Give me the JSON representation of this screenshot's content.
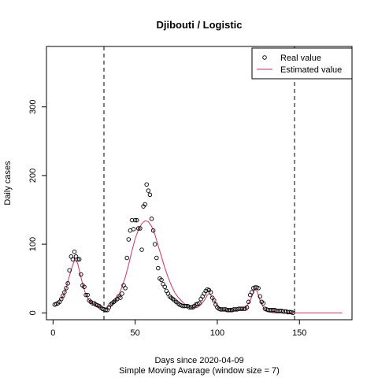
{
  "chart_data": {
    "type": "scatter",
    "title": "Djibouti / Logistic",
    "xlabel": "Days since 2020-04-09",
    "subtitle": "Simple Moving Avarage (window size = 7)",
    "ylabel": "Daily cases",
    "xlim": [
      -4,
      182
    ],
    "ylim": [
      -10,
      388
    ],
    "x_ticks": [
      0,
      50,
      100,
      150
    ],
    "y_ticks": [
      0,
      100,
      200,
      300
    ],
    "vlines": [
      31,
      147
    ],
    "legend": {
      "position": "top-right",
      "entries": [
        {
          "label": "Real value",
          "symbol": "circle"
        },
        {
          "label": "Estimated value",
          "symbol": "line",
          "color": "#cc3366"
        }
      ]
    },
    "series": [
      {
        "name": "Real value",
        "marker": "circle",
        "points": [
          [
            1,
            12
          ],
          [
            2,
            13
          ],
          [
            3,
            14
          ],
          [
            4,
            16
          ],
          [
            5,
            20
          ],
          [
            6,
            25
          ],
          [
            7,
            30
          ],
          [
            8,
            36
          ],
          [
            9,
            43
          ],
          [
            10,
            62
          ],
          [
            11,
            82
          ],
          [
            12,
            78
          ],
          [
            13,
            89
          ],
          [
            14,
            82
          ],
          [
            15,
            78
          ],
          [
            16,
            78
          ],
          [
            17,
            56
          ],
          [
            18,
            40
          ],
          [
            19,
            38
          ],
          [
            20,
            26
          ],
          [
            21,
            26
          ],
          [
            22,
            18
          ],
          [
            23,
            16
          ],
          [
            24,
            14
          ],
          [
            25,
            14
          ],
          [
            26,
            12
          ],
          [
            27,
            11
          ],
          [
            28,
            10
          ],
          [
            29,
            8
          ],
          [
            30,
            6
          ],
          [
            31,
            5
          ],
          [
            32,
            4
          ],
          [
            33,
            4
          ],
          [
            34,
            8
          ],
          [
            35,
            12
          ],
          [
            36,
            14
          ],
          [
            37,
            16
          ],
          [
            38,
            18
          ],
          [
            39,
            20
          ],
          [
            40,
            24
          ],
          [
            41,
            22
          ],
          [
            42,
            28
          ],
          [
            43,
            40
          ],
          [
            44,
            36
          ],
          [
            45,
            80
          ],
          [
            46,
            107
          ],
          [
            47,
            120
          ],
          [
            48,
            135
          ],
          [
            49,
            122
          ],
          [
            50,
            135
          ],
          [
            51,
            135
          ],
          [
            52,
            123
          ],
          [
            53,
            123
          ],
          [
            54,
            92
          ],
          [
            55,
            155
          ],
          [
            56,
            158
          ],
          [
            57,
            187
          ],
          [
            58,
            178
          ],
          [
            59,
            172
          ],
          [
            60,
            137
          ],
          [
            61,
            120
          ],
          [
            62,
            100
          ],
          [
            63,
            80
          ],
          [
            64,
            65
          ],
          [
            65,
            50
          ],
          [
            66,
            48
          ],
          [
            67,
            42
          ],
          [
            68,
            38
          ],
          [
            69,
            32
          ],
          [
            70,
            28
          ],
          [
            71,
            24
          ],
          [
            72,
            22
          ],
          [
            73,
            20
          ],
          [
            74,
            18
          ],
          [
            75,
            16
          ],
          [
            76,
            14
          ],
          [
            77,
            12
          ],
          [
            78,
            11
          ],
          [
            79,
            10
          ],
          [
            80,
            10
          ],
          [
            81,
            10
          ],
          [
            82,
            10
          ],
          [
            83,
            8
          ],
          [
            84,
            8
          ],
          [
            85,
            8
          ],
          [
            86,
            10
          ],
          [
            87,
            12
          ],
          [
            88,
            13
          ],
          [
            89,
            14
          ],
          [
            90,
            20
          ],
          [
            91,
            24
          ],
          [
            92,
            28
          ],
          [
            93,
            32
          ],
          [
            94,
            34
          ],
          [
            95,
            33
          ],
          [
            96,
            30
          ],
          [
            97,
            22
          ],
          [
            98,
            18
          ],
          [
            99,
            12
          ],
          [
            100,
            8
          ],
          [
            101,
            6
          ],
          [
            102,
            5
          ],
          [
            103,
            5
          ],
          [
            104,
            5
          ],
          [
            105,
            5
          ],
          [
            106,
            4
          ],
          [
            107,
            4
          ],
          [
            108,
            4
          ],
          [
            109,
            4
          ],
          [
            110,
            5
          ],
          [
            111,
            5
          ],
          [
            112,
            5
          ],
          [
            113,
            6
          ],
          [
            114,
            6
          ],
          [
            115,
            6
          ],
          [
            116,
            6
          ],
          [
            117,
            6
          ],
          [
            118,
            8
          ],
          [
            119,
            16
          ],
          [
            120,
            26
          ],
          [
            121,
            30
          ],
          [
            122,
            36
          ],
          [
            123,
            37
          ],
          [
            124,
            37
          ],
          [
            125,
            36
          ],
          [
            126,
            24
          ],
          [
            127,
            16
          ],
          [
            128,
            14
          ],
          [
            129,
            6
          ],
          [
            130,
            5
          ],
          [
            131,
            4
          ],
          [
            132,
            4
          ],
          [
            133,
            4
          ],
          [
            134,
            4
          ],
          [
            135,
            4
          ],
          [
            136,
            3
          ],
          [
            137,
            3
          ],
          [
            138,
            3
          ],
          [
            139,
            3
          ],
          [
            140,
            2
          ],
          [
            141,
            2
          ],
          [
            142,
            2
          ],
          [
            143,
            1
          ],
          [
            144,
            1
          ],
          [
            145,
            1
          ],
          [
            146,
            0
          ]
        ]
      },
      {
        "name": "Estimated value",
        "type": "line",
        "color": "#cc3366",
        "points": [
          [
            4,
            17
          ],
          [
            6,
            24
          ],
          [
            8,
            36
          ],
          [
            10,
            54
          ],
          [
            12,
            70
          ],
          [
            13,
            76
          ],
          [
            14,
            76
          ],
          [
            15,
            72
          ],
          [
            16,
            62
          ],
          [
            18,
            42
          ],
          [
            20,
            26
          ],
          [
            22,
            18
          ],
          [
            24,
            14
          ],
          [
            26,
            11
          ],
          [
            28,
            9
          ],
          [
            30,
            8
          ],
          [
            31,
            8
          ],
          [
            32,
            7
          ],
          [
            34,
            9
          ],
          [
            36,
            12
          ],
          [
            38,
            18
          ],
          [
            40,
            26
          ],
          [
            42,
            38
          ],
          [
            44,
            52
          ],
          [
            46,
            70
          ],
          [
            48,
            90
          ],
          [
            50,
            108
          ],
          [
            52,
            121
          ],
          [
            54,
            130
          ],
          [
            56,
            134
          ],
          [
            58,
            133
          ],
          [
            60,
            126
          ],
          [
            62,
            114
          ],
          [
            64,
            98
          ],
          [
            66,
            82
          ],
          [
            68,
            66
          ],
          [
            70,
            52
          ],
          [
            72,
            40
          ],
          [
            74,
            30
          ],
          [
            76,
            23
          ],
          [
            78,
            18
          ],
          [
            80,
            13
          ],
          [
            82,
            10
          ],
          [
            84,
            8
          ],
          [
            86,
            7
          ],
          [
            88,
            8
          ],
          [
            90,
            12
          ],
          [
            92,
            18
          ],
          [
            94,
            26
          ],
          [
            95,
            28
          ],
          [
            96,
            26
          ],
          [
            98,
            18
          ],
          [
            100,
            10
          ],
          [
            102,
            6
          ],
          [
            104,
            4
          ],
          [
            106,
            4
          ],
          [
            108,
            4
          ],
          [
            110,
            4
          ],
          [
            112,
            4
          ],
          [
            114,
            4
          ],
          [
            116,
            6
          ],
          [
            118,
            10
          ],
          [
            120,
            18
          ],
          [
            121,
            24
          ],
          [
            122,
            30
          ],
          [
            123,
            34
          ],
          [
            124,
            32
          ],
          [
            125,
            26
          ],
          [
            126,
            18
          ],
          [
            128,
            8
          ],
          [
            130,
            3
          ],
          [
            132,
            1
          ],
          [
            135,
            0
          ],
          [
            140,
            0
          ],
          [
            147,
            0
          ],
          [
            160,
            0
          ],
          [
            176,
            0
          ]
        ]
      }
    ]
  }
}
